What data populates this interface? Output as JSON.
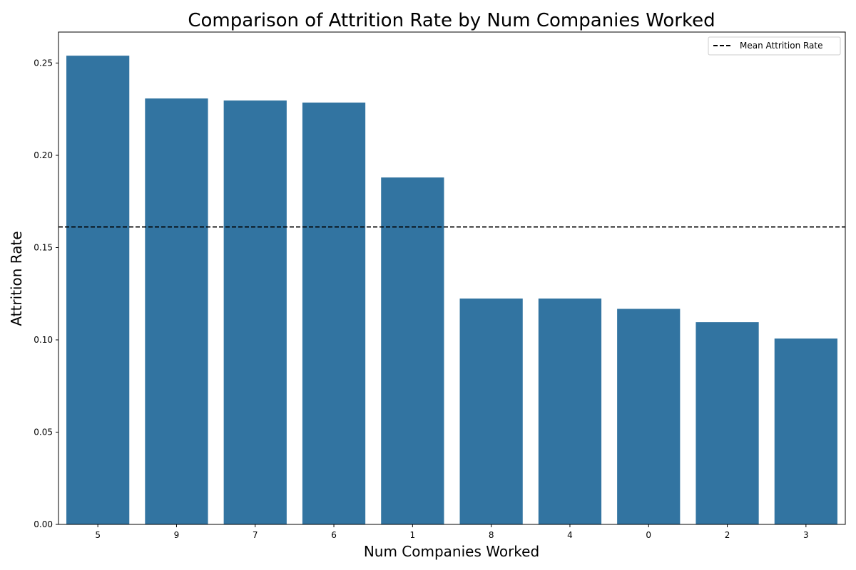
{
  "chart_data": {
    "type": "bar",
    "title": "Comparison of Attrition Rate by Num Companies Worked",
    "xlabel": "Num Companies Worked",
    "ylabel": "Attrition Rate",
    "categories": [
      "5",
      "9",
      "7",
      "6",
      "1",
      "8",
      "4",
      "0",
      "2",
      "3"
    ],
    "values": [
      0.254,
      0.2308,
      0.2297,
      0.2286,
      0.188,
      0.1224,
      0.1224,
      0.1168,
      0.1096,
      0.1007
    ],
    "ylim": [
      0,
      0.2668
    ],
    "yticks": [
      0.0,
      0.05,
      0.1,
      0.15,
      0.2,
      0.25
    ],
    "ytick_labels": [
      "0.00",
      "0.05",
      "0.10",
      "0.15",
      "0.20",
      "0.25"
    ],
    "bar_color": "#3274a1",
    "reference_line": {
      "label": "Mean Attrition Rate",
      "value": 0.1612,
      "style": "dashed",
      "color": "#000000"
    },
    "legend": {
      "placement": "top-right",
      "entries": [
        "Mean Attrition Rate"
      ]
    },
    "grid": false
  }
}
